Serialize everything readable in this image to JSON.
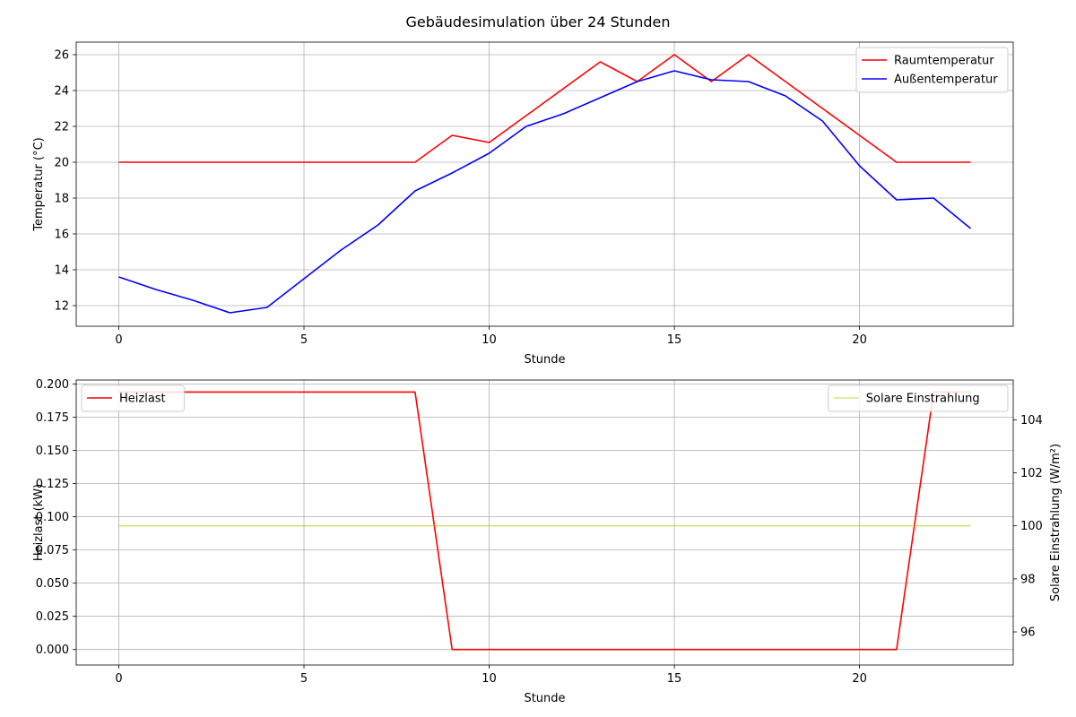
{
  "chart_data": [
    {
      "type": "line",
      "title": "Gebäudesimulation über 24 Stunden",
      "xlabel": "Stunde",
      "ylabel": "Temperatur (°C)",
      "xlim": [
        -1.15,
        24.15
      ],
      "ylim": [
        10.85,
        26.7
      ],
      "xticks": [
        0,
        5,
        10,
        15,
        20
      ],
      "yticks": [
        12,
        14,
        16,
        18,
        20,
        22,
        24,
        26
      ],
      "grid": true,
      "legend": "top-right",
      "x": [
        0,
        1,
        2,
        3,
        4,
        5,
        6,
        7,
        8,
        9,
        10,
        11,
        12,
        13,
        14,
        15,
        16,
        17,
        18,
        19,
        20,
        21,
        22,
        23
      ],
      "series": [
        {
          "name": "Raumtemperatur",
          "color": "#ff0000",
          "values": [
            20,
            20,
            20,
            20,
            20,
            20,
            20,
            20,
            20,
            21.5,
            21.1,
            22.6,
            24.1,
            25.6,
            24.5,
            26.0,
            24.5,
            26.0,
            24.5,
            23.0,
            21.5,
            20,
            20,
            20
          ]
        },
        {
          "name": "Außentemperatur",
          "color": "#0000ff",
          "values": [
            13.6,
            12.9,
            12.3,
            11.6,
            11.9,
            13.5,
            15.1,
            16.5,
            18.4,
            19.4,
            20.5,
            22.0,
            22.7,
            23.6,
            24.5,
            25.1,
            24.6,
            24.5,
            23.7,
            22.3,
            19.8,
            17.9,
            18.0,
            16.3
          ]
        }
      ]
    },
    {
      "type": "line",
      "xlabel": "Stunde",
      "ylabel": "Heizlast (kW)",
      "ylabel_color": "#ff0000",
      "y2label": "Solare Einstrahlung (W/m²)",
      "y2label_color": "#bfbf00",
      "xlim": [
        -1.15,
        24.15
      ],
      "ylim": [
        -0.0117,
        0.2031
      ],
      "y2lim": [
        94.75,
        105.5
      ],
      "xticks": [
        0,
        5,
        10,
        15,
        20
      ],
      "yticks": [
        "0.000",
        "0.025",
        "0.050",
        "0.075",
        "0.100",
        "0.125",
        "0.150",
        "0.175",
        "0.200"
      ],
      "y2ticks": [
        96,
        98,
        100,
        102,
        104
      ],
      "grid": true,
      "x": [
        0,
        1,
        2,
        3,
        4,
        5,
        6,
        7,
        8,
        9,
        10,
        11,
        12,
        13,
        14,
        15,
        16,
        17,
        18,
        19,
        20,
        21,
        22,
        23
      ],
      "series": [
        {
          "name": "Heizlast",
          "axis": "left",
          "color": "#ff0000",
          "legend": "top-left",
          "values": [
            0.194,
            0.194,
            0.194,
            0.194,
            0.194,
            0.194,
            0.194,
            0.194,
            0.194,
            0,
            0,
            0,
            0,
            0,
            0,
            0,
            0,
            0,
            0,
            0,
            0,
            0,
            0.194,
            0.194
          ]
        },
        {
          "name": "Solare Einstrahlung",
          "axis": "right",
          "color": "#bfbf00",
          "legend": "top-right",
          "values": [
            100,
            100,
            100,
            100,
            100,
            100,
            100,
            100,
            100,
            100,
            100,
            100,
            100,
            100,
            100,
            100,
            100,
            100,
            100,
            100,
            100,
            100,
            100,
            100
          ]
        }
      ]
    }
  ]
}
